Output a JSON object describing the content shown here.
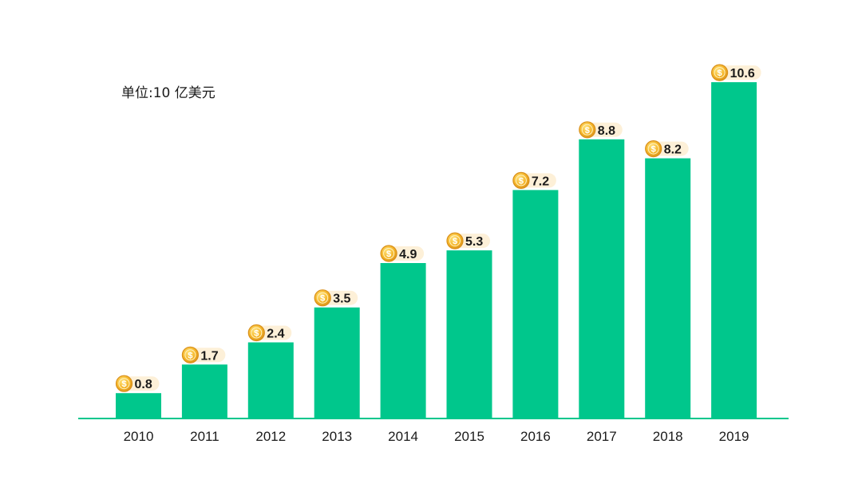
{
  "chart_data": {
    "type": "bar",
    "unit_label": "单位:10 亿美元",
    "categories": [
      "2010",
      "2011",
      "2012",
      "2013",
      "2014",
      "2015",
      "2016",
      "2017",
      "2018",
      "2019"
    ],
    "values": [
      0.8,
      1.7,
      2.4,
      3.5,
      4.9,
      5.3,
      7.2,
      8.8,
      8.2,
      10.6
    ],
    "value_labels": [
      "0.8",
      "1.7",
      "2.4",
      "3.5",
      "4.9",
      "5.3",
      "7.2",
      "8.8",
      "8.2",
      "10.6"
    ],
    "ylim": [
      0,
      11
    ],
    "grid": false,
    "legend": "none",
    "label_icon": "dollar-coin-icon",
    "colors": {
      "bar": "#00c78c",
      "axis": "#00c78c",
      "label_badge": "#fdf0d8",
      "coin": "#f5b62a",
      "coin_dark": "#d9901a"
    }
  }
}
